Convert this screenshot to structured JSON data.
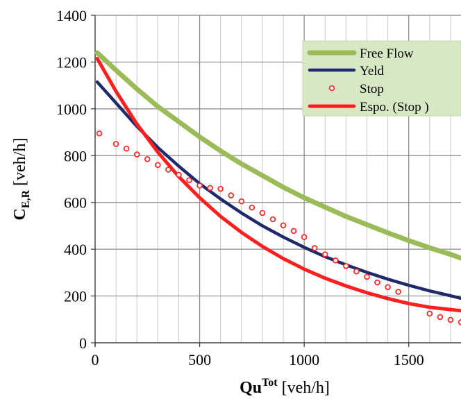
{
  "chart_data": {
    "type": "line",
    "xlabel_main": "Qu",
    "xlabel_sup": "Tot",
    "xlabel_unit": " [veh/h]",
    "ylabel_main": "C",
    "ylabel_sub": "E,R",
    "ylabel_unit": " [veh/h]",
    "xlim": [
      0,
      1750
    ],
    "ylim": [
      0,
      1400
    ],
    "x_ticks": [
      0,
      500,
      1000,
      1500
    ],
    "y_ticks": [
      0,
      200,
      400,
      600,
      800,
      1000,
      1200,
      1400
    ],
    "grid": true,
    "legend_position": "top-right",
    "series": [
      {
        "name": "Free Flow",
        "style": "line",
        "color": "#9bbb59",
        "x": [
          10,
          100,
          200,
          300,
          400,
          500,
          600,
          700,
          800,
          900,
          1000,
          1100,
          1200,
          1300,
          1400,
          1500,
          1600,
          1700,
          1750
        ],
        "y": [
          1240,
          1165,
          1085,
          1010,
          945,
          880,
          820,
          765,
          715,
          665,
          620,
          580,
          540,
          505,
          470,
          437,
          406,
          378,
          362
        ]
      },
      {
        "name": "Yeld",
        "style": "line",
        "color": "#1f2a6b",
        "x": [
          10,
          100,
          200,
          300,
          400,
          500,
          600,
          700,
          800,
          900,
          1000,
          1100,
          1200,
          1300,
          1400,
          1500,
          1600,
          1700,
          1750
        ],
        "y": [
          1115,
          1025,
          925,
          835,
          755,
          680,
          615,
          555,
          500,
          452,
          408,
          368,
          333,
          301,
          272,
          246,
          222,
          201,
          190
        ]
      },
      {
        "name": "Stop",
        "style": "markers",
        "color": "#ff2a2a",
        "x": [
          20,
          100,
          150,
          200,
          250,
          300,
          350,
          400,
          450,
          500,
          550,
          600,
          650,
          700,
          750,
          800,
          850,
          900,
          950,
          1000,
          1050,
          1100,
          1150,
          1200,
          1250,
          1300,
          1350,
          1400,
          1450,
          1600,
          1650,
          1700,
          1750
        ],
        "y": [
          895,
          850,
          830,
          805,
          785,
          760,
          740,
          718,
          695,
          672,
          662,
          658,
          630,
          605,
          578,
          555,
          528,
          502,
          478,
          452,
          405,
          378,
          352,
          328,
          305,
          282,
          258,
          238,
          218,
          125,
          110,
          98,
          88
        ]
      },
      {
        "name": "Espo. (Stop )",
        "style": "line",
        "color": "#ff1f1f",
        "x": [
          10,
          100,
          200,
          300,
          400,
          500,
          600,
          700,
          800,
          900,
          1000,
          1100,
          1200,
          1300,
          1400,
          1500,
          1600,
          1700,
          1750
        ],
        "y": [
          1215,
          1075,
          935,
          815,
          710,
          620,
          540,
          472,
          412,
          360,
          315,
          276,
          243,
          214,
          189,
          168,
          152,
          142,
          137
        ]
      }
    ]
  }
}
